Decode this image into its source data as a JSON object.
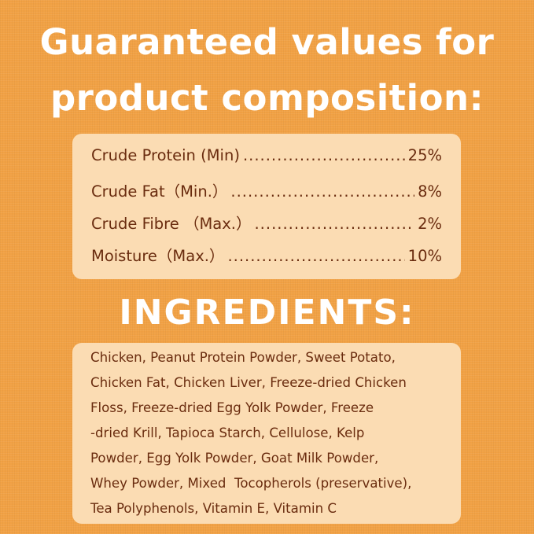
{
  "heading": {
    "line1": "Guaranteed values for",
    "line2": "product composition:"
  },
  "composition": [
    {
      "label": "Crude Protein (Min)",
      "value": "25%"
    },
    {
      "label": "Crude Fat（Min.）",
      "value": "8%"
    },
    {
      "label": "Crude Fibre （Max.）",
      "value": "2%"
    },
    {
      "label": "Moisture（Max.）",
      "value": "10%"
    }
  ],
  "ingredients": {
    "title": "INGREDIENTS:",
    "lines": [
      "Chicken, Peanut Protein Powder, Sweet Potato,",
      "Chicken Fat, Chicken Liver, Freeze-dried Chicken",
      "Floss, Freeze-dried Egg Yolk Powder, Freeze",
      "-dried Krill, Tapioca Starch, Cellulose, Kelp",
      "Powder, Egg Yolk Powder, Goat Milk Powder,",
      "Whey Powder, Mixed  Tocopherols (preservative),",
      "Tea Polyphenols, Vitamin E, Vitamin C"
    ]
  },
  "colors": {
    "background": "#f1a144",
    "panel": "#fbdcb3",
    "text": "#6a2c0f",
    "heading": "#ffffff"
  }
}
